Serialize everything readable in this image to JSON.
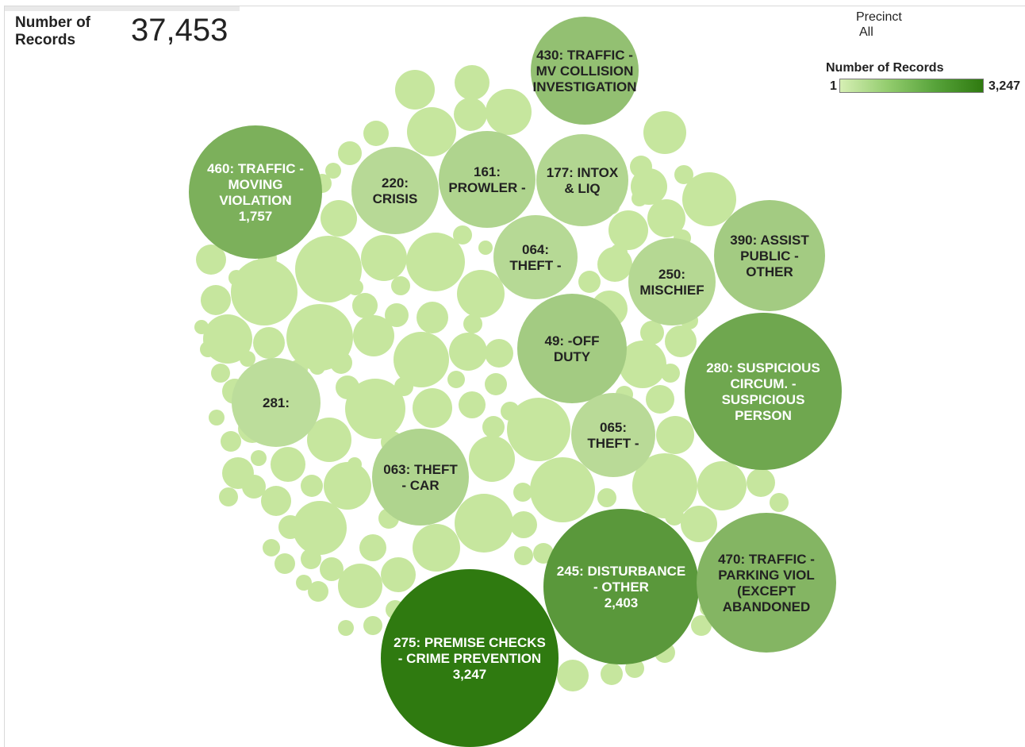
{
  "kpi": {
    "label_line1": "Number of",
    "label_line2": "Records",
    "value": "37,453"
  },
  "filter": {
    "title": "Precinct",
    "value": "All"
  },
  "legend": {
    "title": "Number of Records",
    "min": "1",
    "max": "3,247"
  },
  "chart_data": {
    "type": "packed-bubble",
    "measure": "Number of Records",
    "color_scale": {
      "min": 1,
      "max": 3247,
      "low_color": "#d6efb4",
      "high_color": "#2f7a10"
    },
    "labeled_bubbles": [
      {
        "lines": [
          "430: TRAFFIC -",
          "MV COLLISION",
          "INVESTIGATION"
        ],
        "value": 1300
      },
      {
        "lines": [
          "460: TRAFFIC -",
          "MOVING",
          "VIOLATION",
          "1,757"
        ],
        "value": 1757
      },
      {
        "lines": [
          "220:",
          "CRISIS"
        ],
        "value": 600
      },
      {
        "lines": [
          "161:",
          "PROWLER -"
        ],
        "value": 760
      },
      {
        "lines": [
          "177: INTOX",
          "& LIQ"
        ],
        "value": 700
      },
      {
        "lines": [
          "064:",
          "THEFT -"
        ],
        "value": 620
      },
      {
        "lines": [
          "250:",
          "MISCHIEF"
        ],
        "value": 650
      },
      {
        "lines": [
          "390: ASSIST",
          "PUBLIC -",
          "OTHER"
        ],
        "value": 1000
      },
      {
        "lines": [
          "49: -OFF",
          "DUTY"
        ],
        "value": 1000
      },
      {
        "lines": [
          "281:"
        ],
        "value": 500
      },
      {
        "lines": [
          "280: SUSPICIOUS",
          "CIRCUM. -",
          "SUSPICIOUS",
          "PERSON"
        ],
        "value": 2000
      },
      {
        "lines": [
          "065:",
          "THEFT -"
        ],
        "value": 570
      },
      {
        "lines": [
          "063: THEFT",
          "- CAR"
        ],
        "value": 760
      },
      {
        "lines": [
          "245: DISTURBANCE",
          "- OTHER",
          "2,403"
        ],
        "value": 2403
      },
      {
        "lines": [
          "470: TRAFFIC -",
          "PARKING VIOL",
          "(EXCEPT",
          "ABANDONED"
        ],
        "value": 1600
      },
      {
        "lines": [
          "275: PREMISE CHECKS",
          "- CRIME PREVENTION",
          "3,247"
        ],
        "value": 3247
      }
    ]
  }
}
